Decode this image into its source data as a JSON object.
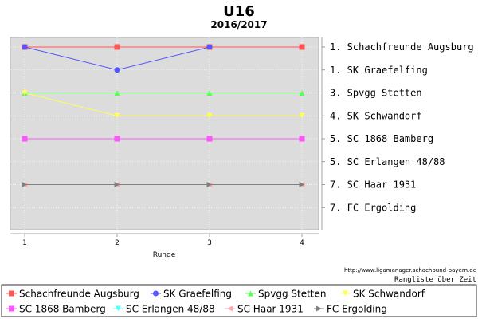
{
  "chart_data": {
    "type": "line",
    "title": "U16",
    "subtitle": "2016/2017",
    "xlabel": "Runde",
    "x": [
      1,
      2,
      3,
      4
    ],
    "ylim": [
      1,
      8
    ],
    "y_inverted": true,
    "grid": true,
    "right_labels": [
      "1. Schachfreunde Augsburg",
      "1. SK Graefelfing",
      "3. Spvgg Stetten",
      "4. SK Schwandorf",
      "5. SC 1868 Bamberg",
      "5. SC Erlangen 48/88",
      "7. SC Haar 1931",
      "7. FC Ergolding"
    ],
    "footer_url": "http://www.ligamanager.schachbund-bayern.de",
    "footer_caption": "Rangliste über Zeit",
    "legend_position": "bottom",
    "series": [
      {
        "name": "Schachfreunde Augsburg",
        "color": "#ff5555",
        "marker": "square",
        "values": [
          1,
          1,
          1,
          1
        ]
      },
      {
        "name": "SK Graefelfing",
        "color": "#5555ff",
        "marker": "circle",
        "values": [
          1,
          2,
          1,
          null
        ]
      },
      {
        "name": "Spvgg Stetten",
        "color": "#55ff55",
        "marker": "triangle-up",
        "values": [
          3,
          3,
          3,
          3
        ]
      },
      {
        "name": "SK Schwandorf",
        "color": "#ffff55",
        "marker": "triangle-down",
        "values": [
          3,
          4,
          4,
          4
        ]
      },
      {
        "name": "SC 1868 Bamberg",
        "color": "#ff55ff",
        "marker": "square",
        "values": [
          5,
          5,
          5,
          5
        ]
      },
      {
        "name": "SC Erlangen 48/88",
        "color": "#55ffff",
        "marker": "triangle-down",
        "values": [
          null,
          null,
          null,
          null
        ]
      },
      {
        "name": "SC Haar 1931",
        "color": "#ffaaaa",
        "marker": "triangle-left",
        "values": [
          7,
          7,
          7,
          7
        ]
      },
      {
        "name": "FC Ergolding",
        "color": "#808080",
        "marker": "triangle-right",
        "values": [
          7,
          7,
          7,
          7
        ]
      }
    ]
  }
}
